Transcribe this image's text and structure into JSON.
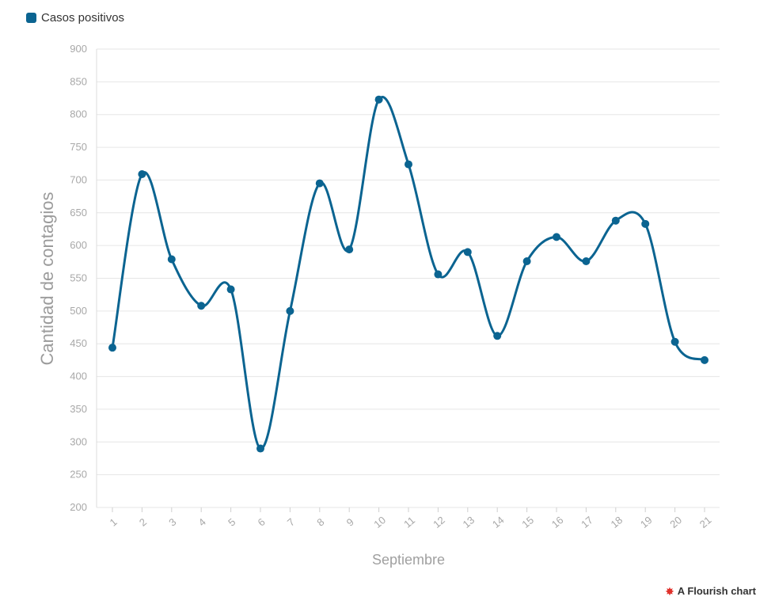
{
  "legend": {
    "label": "Casos positivos",
    "color": "#0b6491"
  },
  "credit": {
    "label": "A Flourish chart",
    "icon": "flourish-icon",
    "icon_color": "#e0312b"
  },
  "chart_data": {
    "type": "line",
    "title": "",
    "xlabel": "Septiembre",
    "ylabel": "Cantidad de contagios",
    "categories": [
      "1",
      "2",
      "3",
      "4",
      "5",
      "6",
      "7",
      "8",
      "9",
      "10",
      "11",
      "12",
      "13",
      "14",
      "15",
      "16",
      "17",
      "18",
      "19",
      "20",
      "21"
    ],
    "series": [
      {
        "name": "Casos positivos",
        "color": "#0b6491",
        "values": [
          444,
          709,
          579,
          508,
          533,
          290,
          500,
          695,
          594,
          823,
          724,
          556,
          590,
          462,
          576,
          613,
          576,
          638,
          633,
          453,
          425
        ]
      }
    ],
    "ylim": [
      200,
      900
    ],
    "yticks": [
      200,
      250,
      300,
      350,
      400,
      450,
      500,
      550,
      600,
      650,
      700,
      750,
      800,
      850,
      900
    ],
    "grid": true,
    "legend_position": "top-left"
  }
}
